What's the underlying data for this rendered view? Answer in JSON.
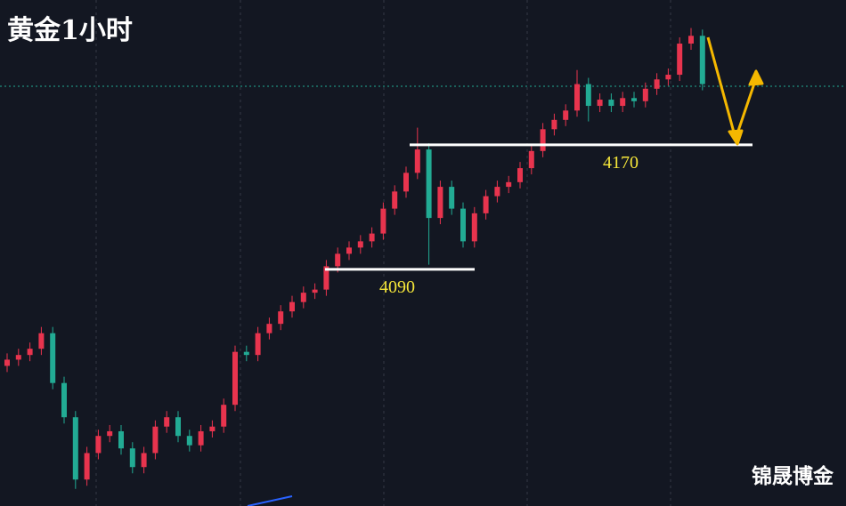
{
  "chart_data": {
    "type": "candlestick",
    "title": "黄金1小时",
    "watermark": "锦晟博金",
    "ylim": [
      3938,
      4263
    ],
    "up_color": "#e8344e",
    "down_color": "#22ab94",
    "levels": [
      4090,
      4170
    ],
    "open": [
      4028,
      4032,
      4035,
      4039,
      4049,
      4017,
      3995,
      3955,
      3972,
      3983,
      3986,
      3975,
      3963,
      3972,
      3989,
      3995,
      3983,
      3977,
      3986,
      3989,
      4003,
      4037,
      4035,
      4049,
      4055,
      4063,
      4069,
      4075,
      4077,
      4092,
      4100,
      4104,
      4108,
      4113,
      4129,
      4140,
      4152,
      4167,
      4123,
      4143,
      4129,
      4108,
      4126,
      4137,
      4143,
      4146,
      4155,
      4166,
      4180,
      4186,
      4192,
      4209,
      4195,
      4199,
      4195,
      4200,
      4198,
      4206,
      4212,
      4215,
      4235,
      4240
    ],
    "high": [
      4036,
      4039,
      4043,
      4053,
      4053,
      4021,
      3999,
      3976,
      3987,
      3990,
      3990,
      3979,
      3976,
      3993,
      3999,
      3999,
      3987,
      3990,
      3993,
      4007,
      4041,
      4041,
      4053,
      4059,
      4067,
      4073,
      4079,
      4081,
      4096,
      4104,
      4108,
      4112,
      4117,
      4133,
      4144,
      4156,
      4181,
      4171,
      4147,
      4147,
      4133,
      4130,
      4141,
      4147,
      4150,
      4159,
      4170,
      4184,
      4190,
      4196,
      4218,
      4213,
      4203,
      4203,
      4204,
      4204,
      4210,
      4216,
      4219,
      4239,
      4245,
      4244
    ],
    "low": [
      4024,
      4028,
      4031,
      4035,
      4013,
      3991,
      3949,
      3951,
      3968,
      3979,
      3971,
      3959,
      3959,
      3968,
      3985,
      3979,
      3973,
      3973,
      3982,
      3985,
      3999,
      4031,
      4031,
      4045,
      4051,
      4059,
      4065,
      4071,
      4073,
      4088,
      4096,
      4100,
      4104,
      4109,
      4125,
      4136,
      4148,
      4093,
      4119,
      4125,
      4104,
      4104,
      4122,
      4133,
      4139,
      4142,
      4151,
      4162,
      4176,
      4182,
      4188,
      4185,
      4191,
      4191,
      4191,
      4194,
      4194,
      4202,
      4208,
      4211,
      4231,
      4205
    ],
    "close": [
      4032,
      4035,
      4039,
      4049,
      4017,
      3995,
      3955,
      3972,
      3983,
      3986,
      3975,
      3963,
      3972,
      3989,
      3995,
      3983,
      3977,
      3986,
      3989,
      4003,
      4037,
      4035,
      4049,
      4055,
      4063,
      4069,
      4075,
      4077,
      4092,
      4100,
      4104,
      4108,
      4113,
      4129,
      4140,
      4152,
      4167,
      4123,
      4143,
      4129,
      4108,
      4126,
      4137,
      4143,
      4146,
      4155,
      4166,
      4180,
      4186,
      4192,
      4209,
      4195,
      4199,
      4195,
      4200,
      4198,
      4206,
      4212,
      4215,
      4235,
      4240,
      4209
    ]
  }
}
